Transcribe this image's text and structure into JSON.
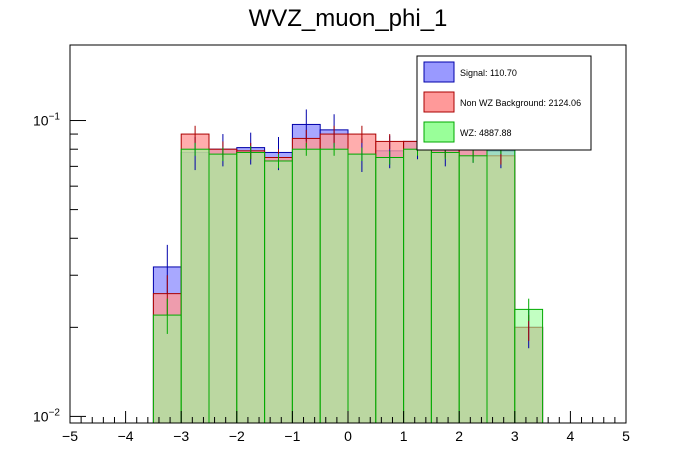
{
  "chart_data": {
    "type": "histogram",
    "title": "WVZ_muon_phi_1",
    "xlabel": "",
    "ylabel": "",
    "xlim": [
      -5,
      5
    ],
    "ylim": [
      0.0095,
      0.18
    ],
    "yscale": "log",
    "x_ticks": [
      -5,
      -4,
      -3,
      -2,
      -1,
      0,
      1,
      2,
      3,
      4,
      5
    ],
    "x_tick_labels": [
      "−5",
      "−4",
      "−3",
      "−2",
      "−1",
      "0",
      "1",
      "2",
      "3",
      "4",
      "5"
    ],
    "y_tick_labels": [
      {
        "value": 0.01,
        "base": "10",
        "exp": "−2"
      },
      {
        "value": 0.1,
        "base": "10",
        "exp": "−1"
      }
    ],
    "bin_edges": [
      -3.5,
      -3.0,
      -2.5,
      -2.0,
      -1.5,
      -1.0,
      -0.5,
      0.0,
      0.5,
      1.0,
      1.5,
      2.0,
      2.5,
      3.0,
      3.5
    ],
    "bin_centers": [
      -3.25,
      -2.75,
      -2.25,
      -1.75,
      -1.25,
      -0.75,
      -0.25,
      0.25,
      0.75,
      1.25,
      1.75,
      2.25,
      2.75,
      3.25
    ],
    "series": [
      {
        "name": "Signal",
        "legend": "Signal: 110.70",
        "fill": "#9999ff",
        "fill_opacity": 0.85,
        "line": "#0000aa",
        "values": [
          0.032,
          0.078,
          0.08,
          0.081,
          0.078,
          0.097,
          0.093,
          0.077,
          0.079,
          0.085,
          0.08,
          0.083,
          0.079,
          0.02
        ],
        "errors": [
          0.006,
          0.01,
          0.01,
          0.01,
          0.01,
          0.012,
          0.012,
          0.01,
          0.01,
          0.011,
          0.01,
          0.011,
          0.01,
          0.003
        ]
      },
      {
        "name": "Non WZ Background",
        "legend": "Non WZ Background: 2124.06",
        "fill": "#ff9999",
        "fill_opacity": 0.8,
        "line": "#aa0000",
        "values": [
          0.026,
          0.09,
          0.08,
          0.079,
          0.075,
          0.087,
          0.09,
          0.09,
          0.085,
          0.085,
          0.08,
          0.08,
          0.076,
          0.02
        ],
        "errors": [
          0.004,
          0.006,
          0.005,
          0.005,
          0.005,
          0.006,
          0.006,
          0.006,
          0.005,
          0.005,
          0.005,
          0.005,
          0.005,
          0.002
        ]
      },
      {
        "name": "WZ",
        "legend": "WZ: 4887.88",
        "fill": "#99ff99",
        "fill_opacity": 0.6,
        "line": "#00aa00",
        "values": [
          0.022,
          0.08,
          0.077,
          0.078,
          0.073,
          0.08,
          0.08,
          0.077,
          0.075,
          0.08,
          0.078,
          0.076,
          0.081,
          0.023
        ],
        "errors": [
          0.003,
          0.004,
          0.004,
          0.004,
          0.004,
          0.004,
          0.004,
          0.004,
          0.004,
          0.004,
          0.004,
          0.004,
          0.004,
          0.002
        ]
      }
    ],
    "legend_position": "top-right"
  }
}
